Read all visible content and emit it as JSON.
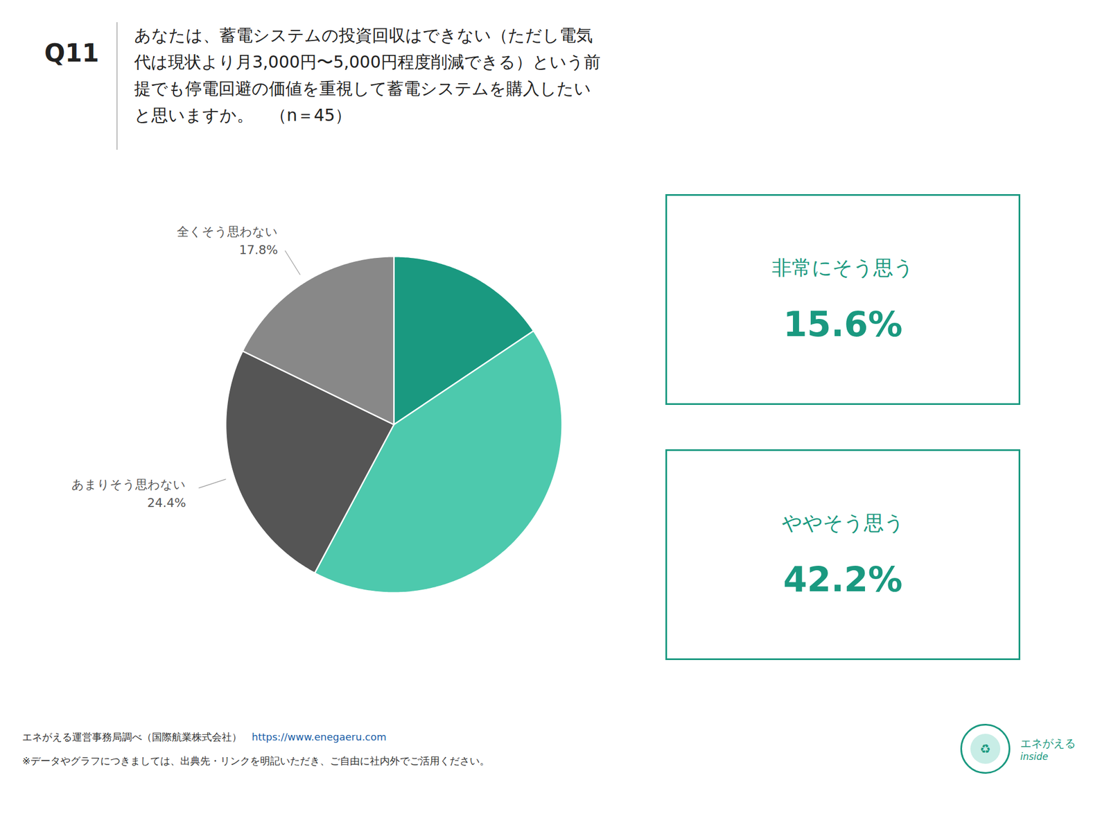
{
  "chart_data": {
    "type": "pie",
    "title": "Q11",
    "subtitle": [
      "あなたは、蓄電システムの投資回収はできない（ただし電気",
      "代は現状より月3,000円〜5,000円程度削減できる）という前",
      "提でも停電回避の価値を重視して蓄電システムを購入したい",
      "と思いますか。　（n＝45）"
    ],
    "categories": [
      "非常にそう思う",
      "ややそう思う",
      "あまりそう思わない",
      "全くそう思わない"
    ],
    "values": [
      15.6,
      42.2,
      24.4,
      17.8
    ],
    "colors": [
      "#1a9980",
      "#4dc9ad",
      "#555555",
      "#888888"
    ],
    "value_labels": [
      null,
      null,
      "24.4%",
      "17.8%"
    ],
    "color": "#1a9980",
    "annotations": [
      {
        "text": "非常にそう思う",
        "label": "15.6%"
      },
      {
        "text": "ややそう思う",
        "label": "42.2%"
      }
    ],
    "footer": [
      "エネがえる運営事務局調べ（国際航業株式会社）　",
      "https://www.enegaeru.com",
      "※データやグラフにつきましては、出典先・リンクを明記いただき、ご自由に社内外でご活用ください。"
    ],
    "logo": [
      "♻",
      "エネがえる",
      "inside"
    ]
  }
}
